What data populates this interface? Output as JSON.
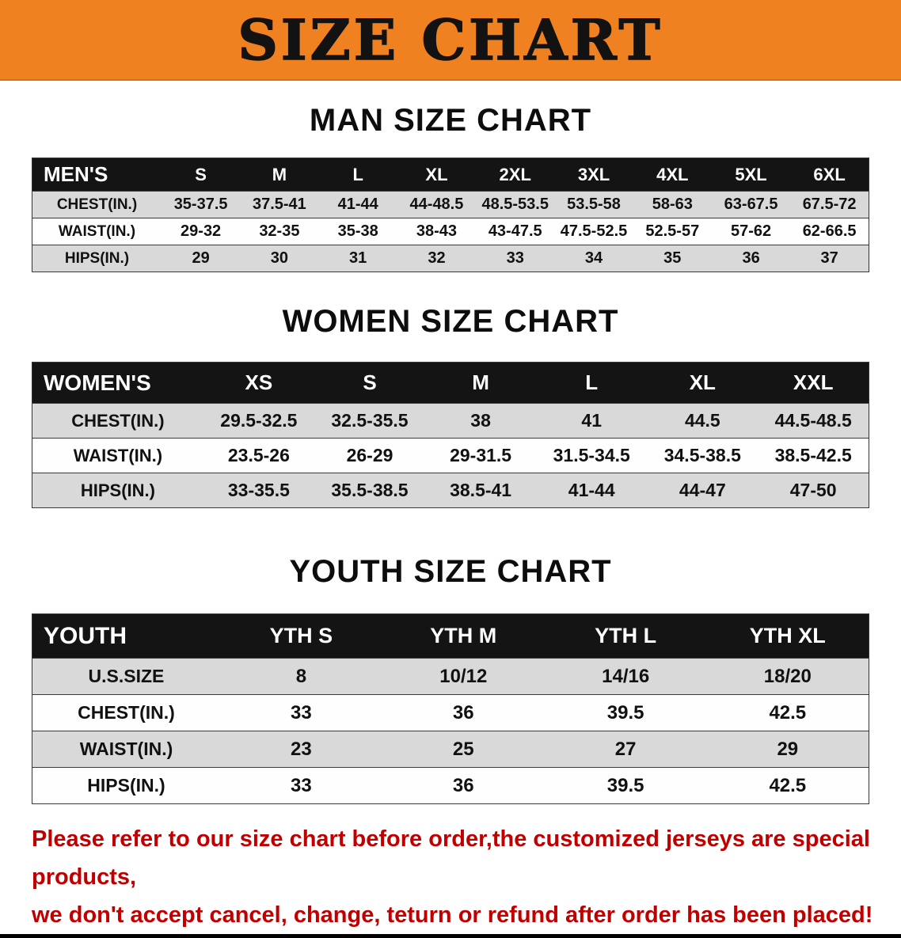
{
  "banner": {
    "title": "SIZE CHART",
    "bg_color": "#F08121"
  },
  "sections": [
    {
      "id": "men",
      "heading": "MAN SIZE CHART",
      "table": {
        "header": [
          "MEN'S",
          "S",
          "M",
          "L",
          "XL",
          "2XL",
          "3XL",
          "4XL",
          "5XL",
          "6XL"
        ],
        "rows": [
          [
            "CHEST(IN.)",
            "35-37.5",
            "37.5-41",
            "41-44",
            "44-48.5",
            "48.5-53.5",
            "53.5-58",
            "58-63",
            "63-67.5",
            "67.5-72"
          ],
          [
            "WAIST(IN.)",
            "29-32",
            "32-35",
            "35-38",
            "38-43",
            "43-47.5",
            "47.5-52.5",
            "52.5-57",
            "57-62",
            "62-66.5"
          ],
          [
            "HIPS(IN.)",
            "29",
            "30",
            "31",
            "32",
            "33",
            "34",
            "35",
            "36",
            "37"
          ]
        ]
      }
    },
    {
      "id": "women",
      "heading": "WOMEN SIZE CHART",
      "table": {
        "header": [
          "WOMEN'S",
          "XS",
          "S",
          "M",
          "L",
          "XL",
          "XXL"
        ],
        "rows": [
          [
            "CHEST(IN.)",
            "29.5-32.5",
            "32.5-35.5",
            "38",
            "41",
            "44.5",
            "44.5-48.5"
          ],
          [
            "WAIST(IN.)",
            "23.5-26",
            "26-29",
            "29-31.5",
            "31.5-34.5",
            "34.5-38.5",
            "38.5-42.5"
          ],
          [
            "HIPS(IN.)",
            "33-35.5",
            "35.5-38.5",
            "38.5-41",
            "41-44",
            "44-47",
            "47-50"
          ]
        ]
      }
    },
    {
      "id": "youth",
      "heading": "YOUTH SIZE CHART",
      "table": {
        "header": [
          "YOUTH",
          "YTH S",
          "YTH M",
          "YTH L",
          "YTH XL"
        ],
        "rows": [
          [
            "U.S.SIZE",
            "8",
            "10/12",
            "14/16",
            "18/20"
          ],
          [
            "CHEST(IN.)",
            "33",
            "36",
            "39.5",
            "42.5"
          ],
          [
            "WAIST(IN.)",
            "23",
            "25",
            "27",
            "29"
          ],
          [
            "HIPS(IN.)",
            "33",
            "36",
            "39.5",
            "42.5"
          ]
        ]
      }
    }
  ],
  "disclaimer": {
    "color": "#C00000",
    "lines": [
      "Please refer to our size chart before order,the customized jerseys are special products,",
      "we don't accept cancel, change, teturn or refund after order has been placed!"
    ]
  }
}
